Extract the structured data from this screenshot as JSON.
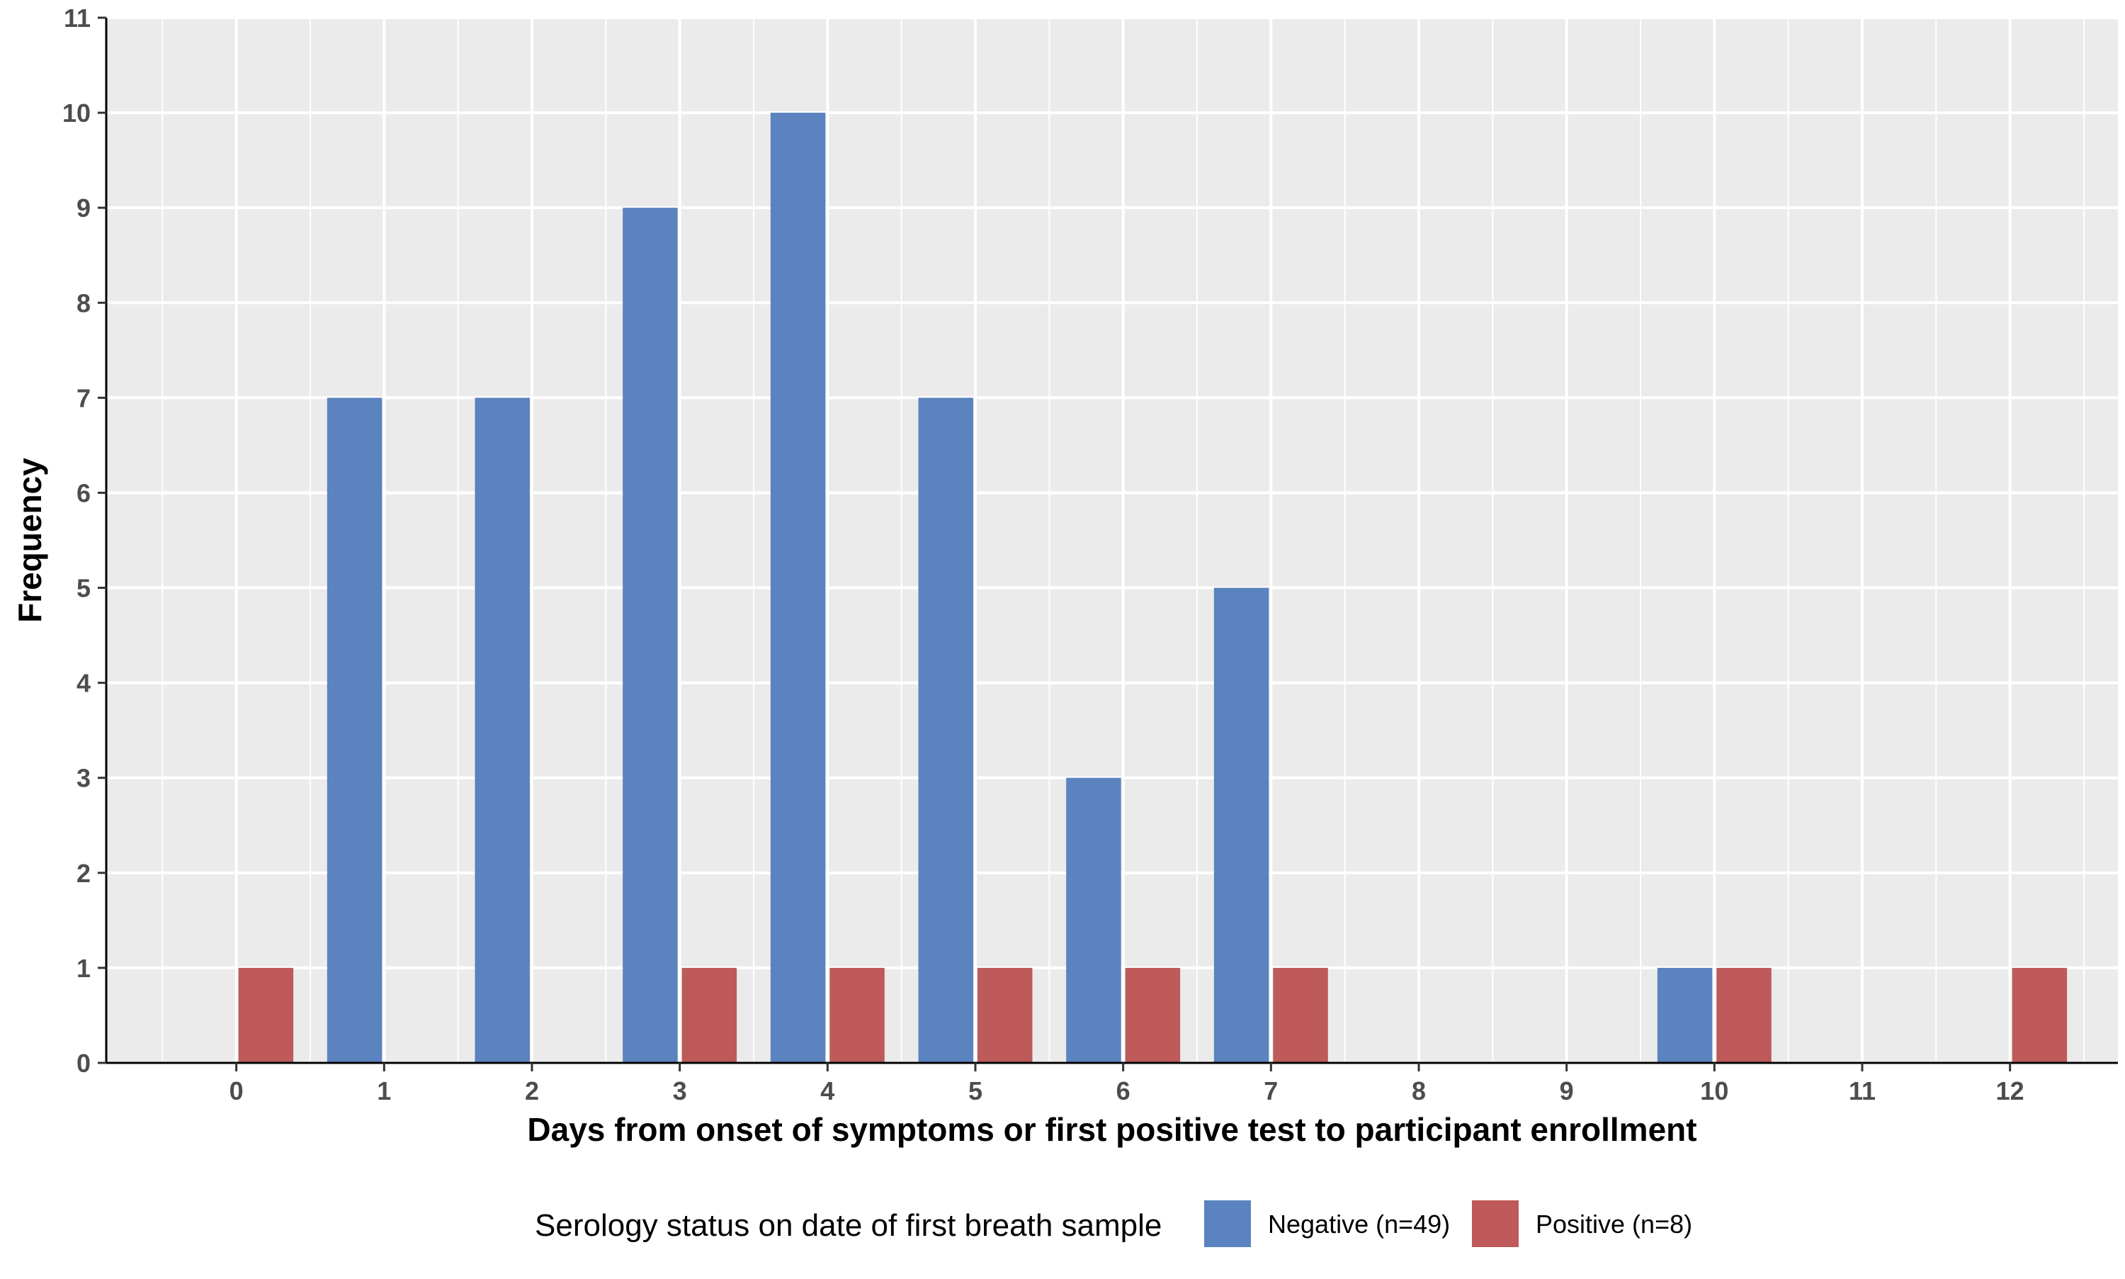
{
  "chart_data": {
    "type": "bar",
    "x": [
      0,
      1,
      2,
      3,
      4,
      5,
      6,
      7,
      8,
      9,
      10,
      11,
      12
    ],
    "x_tick_labels": [
      "0",
      "1",
      "2",
      "3",
      "4",
      "5",
      "6",
      "7",
      "8",
      "9",
      "10",
      "11",
      "12"
    ],
    "y_tick_labels": [
      "0",
      "1",
      "2",
      "3",
      "4",
      "5",
      "6",
      "7",
      "8",
      "9",
      "10",
      "11"
    ],
    "series": [
      {
        "name": "Negative (n=49)",
        "color": "#5a83bf",
        "values": [
          0,
          7,
          7,
          9,
          10,
          7,
          3,
          5,
          0,
          0,
          1,
          0,
          0
        ]
      },
      {
        "name": "Positive (n=8)",
        "color": "#be5a5a",
        "values": [
          1,
          0,
          0,
          1,
          1,
          1,
          1,
          1,
          0,
          0,
          1,
          0,
          1
        ]
      }
    ],
    "xlabel": "Days from onset of symptoms or first positive test to participant enrollment",
    "ylabel": "Frequency",
    "xlim": [
      -0.88,
      12.73
    ],
    "ylim": [
      0,
      11
    ],
    "grid": true,
    "legend_title": "Serology status on date of first breath sample",
    "legend_position": "bottom",
    "panel_background": "#ebebeb",
    "grid_color": "#ffffff"
  }
}
